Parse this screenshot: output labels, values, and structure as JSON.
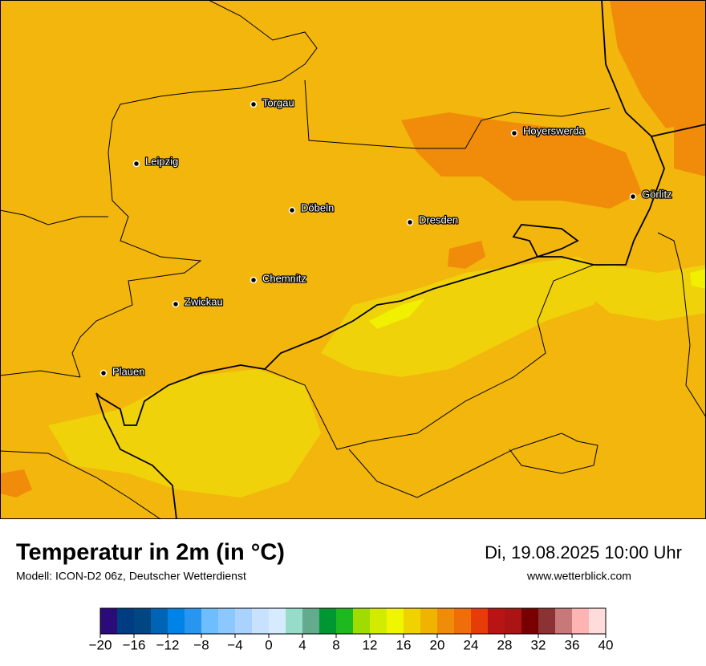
{
  "title": "Temperatur in 2m (in °C)",
  "subtitle": "Modell: ICON-D2 06z, Deutscher Wetterdienst",
  "datetime": "Di, 19.08.2025 10:00 Uhr",
  "website": "www.wetterblick.com",
  "cities": [
    "Torgau",
    "Hoyerswerda",
    "Leipzig",
    "Görlitz",
    "Döbeln",
    "Dresden",
    "Chemnitz",
    "Zwickau",
    "Plauen"
  ],
  "colorbar": {
    "colors": [
      "#2b0a7a",
      "#003c82",
      "#004682",
      "#0064b4",
      "#0082e6",
      "#2896f0",
      "#6ebeff",
      "#8cc8ff",
      "#aad2ff",
      "#c8e1ff",
      "#d7ebff",
      "#96dcc8",
      "#64aa8c",
      "#009632",
      "#1eb91e",
      "#a0dc00",
      "#d2eb00",
      "#f0f500",
      "#f0d200",
      "#f0b400",
      "#f08c0a",
      "#f06e0a",
      "#e63c0a",
      "#b91414",
      "#aa1414",
      "#780000",
      "#8c3232",
      "#c87878",
      "#ffb4b4",
      "#ffdcdc"
    ],
    "ticks": [
      {
        "value": -20,
        "label": "−20"
      },
      {
        "value": -16,
        "label": "−16"
      },
      {
        "value": -12,
        "label": "−12"
      },
      {
        "value": -8,
        "label": "−8"
      },
      {
        "value": -4,
        "label": "−4"
      },
      0,
      4,
      8,
      12,
      16,
      20,
      24,
      28,
      32,
      36,
      40
    ]
  }
}
